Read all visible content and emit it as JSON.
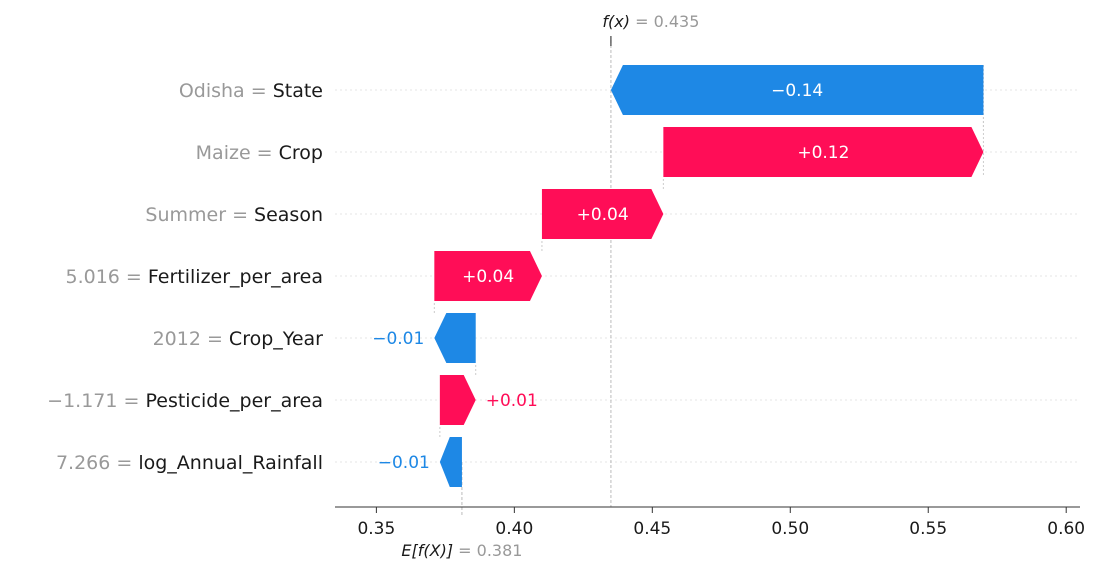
{
  "chart_data": {
    "type": "waterfall",
    "fx_label": {
      "prefix": "f(x)",
      "value": "= 0.435"
    },
    "efx_label": {
      "prefix": "E[f(X)]",
      "value": "= 0.381"
    },
    "fx_value": 0.435,
    "efx_value": 0.381,
    "xlim": [
      0.335,
      0.605
    ],
    "x_ticks": [
      {
        "value": 0.35,
        "label": "0.35"
      },
      {
        "value": 0.4,
        "label": "0.40"
      },
      {
        "value": 0.45,
        "label": "0.45"
      },
      {
        "value": 0.5,
        "label": "0.50"
      },
      {
        "value": 0.55,
        "label": "0.55"
      },
      {
        "value": 0.6,
        "label": "0.60"
      }
    ],
    "features": [
      {
        "feature_value": "Odisha",
        "feature_name": "State",
        "start": 0.57,
        "end": 0.435,
        "label": "−0.14"
      },
      {
        "feature_value": "Maize",
        "feature_name": "Crop",
        "start": 0.454,
        "end": 0.57,
        "label": "+0.12"
      },
      {
        "feature_value": "Summer",
        "feature_name": "Season",
        "start": 0.41,
        "end": 0.454,
        "label": "+0.04"
      },
      {
        "feature_value": "5.016",
        "feature_name": "Fertilizer_per_area",
        "start": 0.371,
        "end": 0.41,
        "label": "+0.04"
      },
      {
        "feature_value": "2012",
        "feature_name": "Crop_Year",
        "start": 0.386,
        "end": 0.371,
        "label": "−0.01"
      },
      {
        "feature_value": "−1.171",
        "feature_name": "Pesticide_per_area",
        "start": 0.373,
        "end": 0.386,
        "label": "+0.01"
      },
      {
        "feature_value": "7.266",
        "feature_name": "log_Annual_Rainfall",
        "start": 0.381,
        "end": 0.373,
        "label": "−0.01"
      }
    ],
    "colors": {
      "positive": "#ff0d57",
      "negative": "#1e88e5",
      "feature_value_text": "#999999",
      "feature_name_text": "#1a1a1a",
      "gridline": "#e6e6e6",
      "axis": "#333333"
    }
  }
}
